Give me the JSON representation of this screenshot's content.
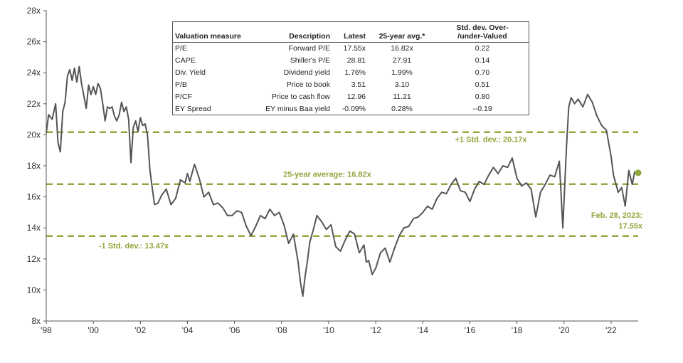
{
  "chart_data": {
    "type": "line",
    "title": "",
    "xlabel": "",
    "ylabel": "",
    "ylim": [
      8,
      28
    ],
    "xlim": [
      1998.0,
      2023.15
    ],
    "y_ticks": [
      "8x",
      "10x",
      "12x",
      "14x",
      "16x",
      "18x",
      "20x",
      "22x",
      "24x",
      "26x",
      "28x"
    ],
    "x_ticks": [
      "'98",
      "'00",
      "'02",
      "'04",
      "'06",
      "'08",
      "'10",
      "'12",
      "'14",
      "'16",
      "'18",
      "'20",
      "'22"
    ],
    "grid": false,
    "series": [
      {
        "x": [
          1998.0,
          1998.1,
          1998.25,
          1998.4,
          1998.5,
          1998.6,
          1998.7,
          1998.8,
          1998.9,
          1999.0,
          1999.1,
          1999.2,
          1999.3,
          1999.4,
          1999.5,
          1999.6,
          1999.7,
          1999.8,
          1999.9,
          2000.0,
          2000.1,
          2000.2,
          2000.3,
          2000.4,
          2000.5,
          2000.6,
          2000.7,
          2000.8,
          2000.9,
          2001.0,
          2001.1,
          2001.2,
          2001.3,
          2001.4,
          2001.5,
          2001.6,
          2001.7,
          2001.8,
          2001.9,
          2002.0,
          2002.1,
          2002.2,
          2002.3,
          2002.4,
          2002.5,
          2002.6,
          2002.75,
          2002.9,
          2003.1,
          2003.3,
          2003.5,
          2003.7,
          2003.9,
          2004.0,
          2004.1,
          2004.3,
          2004.5,
          2004.7,
          2004.9,
          2005.1,
          2005.3,
          2005.5,
          2005.7,
          2005.9,
          2006.1,
          2006.3,
          2006.5,
          2006.7,
          2006.9,
          2007.1,
          2007.3,
          2007.5,
          2007.7,
          2007.9,
          2008.1,
          2008.3,
          2008.5,
          2008.6,
          2008.7,
          2008.8,
          2008.9,
          2009.0,
          2009.1,
          2009.2,
          2009.35,
          2009.5,
          2009.7,
          2009.9,
          2010.1,
          2010.3,
          2010.5,
          2010.7,
          2010.9,
          2011.1,
          2011.3,
          2011.5,
          2011.6,
          2011.7,
          2011.85,
          2012.0,
          2012.2,
          2012.4,
          2012.6,
          2012.8,
          2013.0,
          2013.2,
          2013.4,
          2013.6,
          2013.8,
          2014.0,
          2014.2,
          2014.4,
          2014.6,
          2014.8,
          2015.0,
          2015.2,
          2015.4,
          2015.6,
          2015.8,
          2016.0,
          2016.2,
          2016.4,
          2016.6,
          2016.8,
          2017.0,
          2017.2,
          2017.4,
          2017.6,
          2017.8,
          2018.0,
          2018.2,
          2018.4,
          2018.6,
          2018.8,
          2019.0,
          2019.2,
          2019.4,
          2019.6,
          2019.8,
          2019.95,
          2020.1,
          2020.2,
          2020.3,
          2020.45,
          2020.6,
          2020.8,
          2021.0,
          2021.2,
          2021.4,
          2021.6,
          2021.8,
          2022.0,
          2022.1,
          2022.3,
          2022.45,
          2022.6,
          2022.75,
          2022.9,
          2023.0,
          2023.15
        ],
        "values": [
          20.1,
          21.3,
          21.0,
          22.0,
          19.5,
          18.9,
          21.5,
          22.1,
          23.8,
          24.2,
          23.5,
          24.3,
          23.4,
          24.4,
          23.3,
          22.5,
          21.7,
          23.2,
          22.6,
          23.1,
          22.6,
          23.3,
          23.0,
          22.0,
          20.9,
          21.8,
          21.7,
          21.8,
          21.2,
          20.9,
          21.3,
          22.1,
          21.5,
          21.8,
          21.0,
          18.2,
          20.5,
          20.9,
          20.2,
          21.1,
          20.6,
          20.7,
          20.0,
          17.8,
          16.6,
          15.5,
          15.6,
          16.1,
          16.5,
          15.5,
          15.9,
          17.1,
          16.9,
          17.5,
          17.0,
          18.1,
          17.2,
          16.0,
          16.3,
          15.5,
          15.6,
          15.3,
          14.8,
          14.8,
          15.1,
          15.0,
          14.1,
          13.5,
          14.1,
          14.8,
          14.6,
          15.2,
          14.8,
          15.0,
          14.2,
          13.0,
          13.6,
          12.7,
          11.8,
          10.5,
          9.6,
          10.9,
          11.9,
          13.1,
          13.9,
          14.8,
          14.4,
          13.9,
          14.2,
          12.8,
          12.5,
          13.2,
          13.8,
          13.6,
          12.4,
          12.9,
          11.8,
          11.9,
          11.0,
          11.4,
          12.4,
          12.7,
          11.8,
          12.7,
          13.5,
          14.0,
          14.1,
          14.6,
          14.7,
          15.0,
          15.4,
          15.2,
          15.9,
          16.3,
          16.2,
          16.8,
          17.2,
          16.4,
          16.3,
          15.7,
          16.5,
          17.0,
          16.8,
          17.4,
          17.9,
          17.5,
          18.0,
          17.9,
          18.5,
          17.2,
          16.7,
          16.9,
          16.5,
          14.7,
          16.3,
          16.8,
          17.4,
          17.3,
          18.3,
          14.0,
          19.1,
          21.8,
          22.4,
          22.0,
          22.3,
          21.8,
          22.6,
          22.1,
          21.2,
          20.6,
          20.3,
          18.6,
          17.4,
          16.3,
          16.6,
          15.4,
          17.7,
          16.8,
          17.6,
          17.55
        ]
      }
    ],
    "reference_lines": [
      {
        "value": 20.17,
        "label": "+1 Std. dev.: 20.17x"
      },
      {
        "value": 16.82,
        "label": "25-year average: 16.82x"
      },
      {
        "value": 13.47,
        "label": "-1 Std. dev.: 13.47x"
      }
    ],
    "annotation": {
      "x": 2023.15,
      "value": 17.55,
      "line1": "Feb. 28, 2023:",
      "line2": "17.55x"
    },
    "colors": {
      "line": "#555555",
      "accent": "#8fa73c"
    }
  },
  "table": {
    "headers": [
      "Valuation measure",
      "Description",
      "Latest",
      "25-year avg.*",
      "Std. dev. Over-\n/under-Valued"
    ],
    "rows": [
      [
        "P/E",
        "Forward P/E",
        "17.55x",
        "16.82x",
        "0.22"
      ],
      [
        "CAPE",
        "Shiller's P/E",
        "28.81",
        "27.91",
        "0.14"
      ],
      [
        "Div. Yield",
        "Dividend yield",
        "1.76%",
        "1.99%",
        "0.70"
      ],
      [
        "P/B",
        "Price to book",
        "3.51",
        "3.10",
        "0.51"
      ],
      [
        "P/CF",
        "Price to cash flow",
        "12.96",
        "11.21",
        "0.80"
      ],
      [
        "EY Spread",
        "EY minus Baa yield",
        "-0.09%",
        "0.28%",
        "--0.19"
      ]
    ]
  }
}
